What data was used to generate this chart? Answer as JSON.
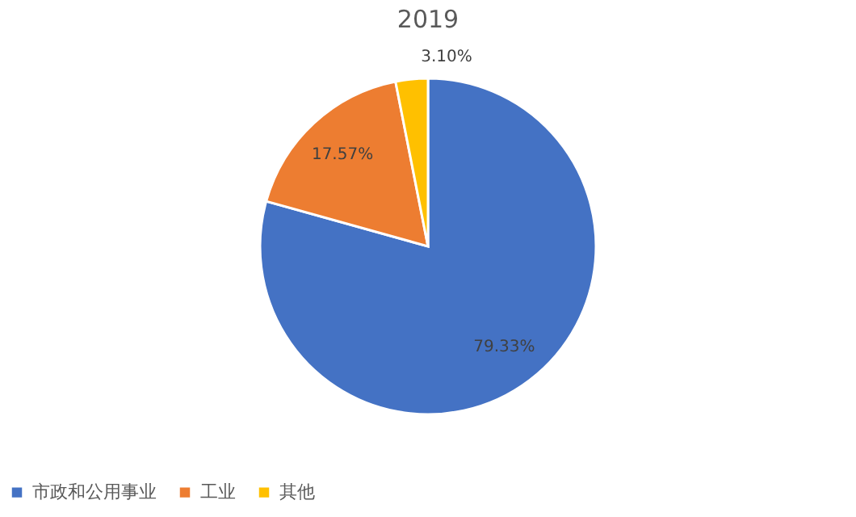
{
  "chart_data": {
    "type": "pie",
    "title": "2019",
    "categories": [
      "市政和公用事业",
      "工业",
      "其他"
    ],
    "values": [
      79.33,
      17.57,
      3.1
    ],
    "colors": [
      "#4472c4",
      "#ed7d31",
      "#ffc000"
    ],
    "value_labels": [
      "79.33%",
      "17.57%",
      "3.10%"
    ],
    "legend": "bottom"
  }
}
